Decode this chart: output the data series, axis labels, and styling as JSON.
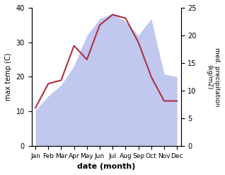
{
  "months": [
    "Jan",
    "Feb",
    "Mar",
    "Apr",
    "May",
    "Jun",
    "Jul",
    "Aug",
    "Sep",
    "Oct",
    "Nov",
    "Dec"
  ],
  "max_temp": [
    11,
    18,
    19,
    29,
    25,
    35,
    38,
    37,
    30,
    20,
    13,
    13
  ],
  "precipitation": [
    6.5,
    9,
    11,
    14.5,
    20,
    23,
    24,
    22.5,
    20,
    23,
    13,
    12.5
  ],
  "temp_color": "#b03040",
  "precip_color_fill": "#c0c8f0",
  "ylabel_left": "max temp (C)",
  "ylabel_right": "med. precipitation\n(kg/m2)",
  "xlabel": "date (month)",
  "ylim_left": [
    0,
    40
  ],
  "ylim_right": [
    0,
    25
  ],
  "yticks_left": [
    0,
    10,
    20,
    30,
    40
  ],
  "yticks_right": [
    0,
    5,
    10,
    15,
    20,
    25
  ],
  "temp_linewidth": 1.5,
  "figsize": [
    3.18,
    2.47
  ],
  "dpi": 100
}
